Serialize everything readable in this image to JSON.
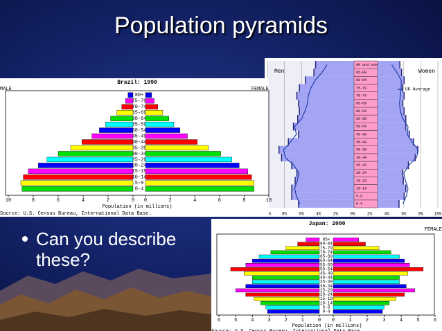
{
  "title": "Population pyramids",
  "bullet": "Can you describe these?",
  "chart_data": [
    {
      "type": "pyramid",
      "title": "Brazil: 1990",
      "categories": [
        "0-4",
        "5-9",
        "10-14",
        "15-19",
        "20-24",
        "25-29",
        "30-34",
        "35-39",
        "40-44",
        "45-49",
        "50-54",
        "55-59",
        "60-64",
        "65-69",
        "70-74",
        "75-79",
        "80+"
      ],
      "series": [
        {
          "name": "MALE",
          "values": [
            8.9,
            9.0,
            8.8,
            8.4,
            7.6,
            6.9,
            6.0,
            5.0,
            4.1,
            3.3,
            2.7,
            2.2,
            1.8,
            1.3,
            0.9,
            0.6,
            0.4
          ]
        },
        {
          "name": "FEMALE",
          "values": [
            8.8,
            8.8,
            8.6,
            8.3,
            7.6,
            7.0,
            6.1,
            5.1,
            4.2,
            3.4,
            2.8,
            2.3,
            1.9,
            1.4,
            1.0,
            0.7,
            0.5
          ]
        }
      ],
      "colors": [
        "#00e000",
        "#ffff00",
        "#ff0000",
        "#ff00ff",
        "#0000ff",
        "#00ffff",
        "#00e000",
        "#ffff00",
        "#ff0000",
        "#ff00ff",
        "#0000ff",
        "#00ffff",
        "#00e000",
        "#ffff00",
        "#ff0000",
        "#ff00ff",
        "#0000ff"
      ],
      "xlim": [
        0,
        10
      ],
      "xticks": [
        0,
        2,
        4,
        6,
        8,
        10
      ],
      "xlabel": "Population (in millions)",
      "source": "Source: U.S. Census Bureau, International Data Base."
    },
    {
      "type": "area-pyramid",
      "categories": [
        "0-4",
        "5-9",
        "10-14",
        "15-19",
        "20-24",
        "25-29",
        "30-34",
        "35-39",
        "40-44",
        "45-49",
        "50-54",
        "55-59",
        "60-64",
        "65-69",
        "70-74",
        "75-79",
        "80-84",
        "85-89",
        "90 and over"
      ],
      "series": [
        {
          "name": "Men",
          "color": "#a4a4f4",
          "values": [
            6.4,
            7.2,
            7.2,
            6.8,
            6.6,
            7.2,
            8.4,
            8.7,
            7.6,
            6.4,
            7.0,
            6.5,
            6.3,
            6.4,
            6.6,
            6.3,
            5.6,
            4.6,
            4.4
          ]
        },
        {
          "name": "Women",
          "color": "#a4a4f4",
          "values": [
            5.5,
            6.1,
            6.3,
            6.0,
            5.9,
            6.6,
            7.4,
            7.7,
            7.2,
            6.7,
            6.3,
            6.3,
            6.1,
            5.9,
            6.1,
            5.9,
            6.1,
            5.8,
            5.6
          ]
        }
      ],
      "average": {
        "name": "UK Average",
        "color": "#1f3fa8",
        "men": [
          6.2,
          6.6,
          6.8,
          6.5,
          6.3,
          6.9,
          7.9,
          8.1,
          7.3,
          6.6,
          6.8,
          6.0,
          5.6,
          5.3,
          5.2,
          4.9,
          4.4,
          3.6,
          3.0
        ],
        "women": [
          5.9,
          6.3,
          6.5,
          6.2,
          6.0,
          6.6,
          7.5,
          7.7,
          7.0,
          6.4,
          6.5,
          5.9,
          5.6,
          5.5,
          5.6,
          5.7,
          5.7,
          5.2,
          4.6
        ]
      },
      "xlim": [
        0,
        10
      ],
      "xticks": [
        {
          "value": 0,
          "label": "0%"
        },
        {
          "value": 2,
          "label": "2%"
        },
        {
          "value": 4,
          "label": "4%"
        },
        {
          "value": 6,
          "label": "6%"
        },
        {
          "value": 8,
          "label": "8%"
        },
        {
          "value": 10,
          "label": "10%"
        }
      ],
      "grid": true
    },
    {
      "type": "pyramid",
      "title": "Japan: 2000",
      "categories": [
        "0-4",
        "5-9",
        "10-14",
        "15-19",
        "20-24",
        "25-29",
        "30-34",
        "35-39",
        "40-44",
        "45-49",
        "50-54",
        "55-59",
        "60-64",
        "65-69",
        "70-74",
        "75-79",
        "80-84",
        "85+"
      ],
      "series": [
        {
          "values": [
            3.1,
            3.2,
            3.5,
            3.9,
            4.4,
            5.0,
            4.4,
            4.0,
            4.0,
            4.5,
            5.3,
            4.4,
            4.0,
            3.6,
            2.9,
            2.0,
            1.3,
            0.8
          ]
        },
        {
          "name": "FEMALE",
          "values": [
            2.9,
            3.0,
            3.3,
            3.7,
            4.2,
            4.8,
            4.3,
            3.9,
            3.9,
            4.4,
            5.3,
            4.5,
            4.2,
            3.9,
            3.4,
            2.7,
            1.9,
            1.5
          ]
        }
      ],
      "colors": [
        "#0000ff",
        "#00ffff",
        "#00e000",
        "#ffff00",
        "#ff0000",
        "#ff00ff",
        "#0000ff",
        "#00ffff",
        "#00e000",
        "#ffff00",
        "#ff0000",
        "#ff00ff",
        "#0000ff",
        "#00ffff",
        "#00e000",
        "#ffff00",
        "#ff0000",
        "#ff00ff"
      ],
      "xlim": [
        0,
        6
      ],
      "xticks": [
        0,
        1,
        2,
        3,
        4,
        5,
        6
      ],
      "xlabel": "Population (in millions)",
      "source": "Source: U.S. Census Bureau, International Data Base."
    }
  ]
}
